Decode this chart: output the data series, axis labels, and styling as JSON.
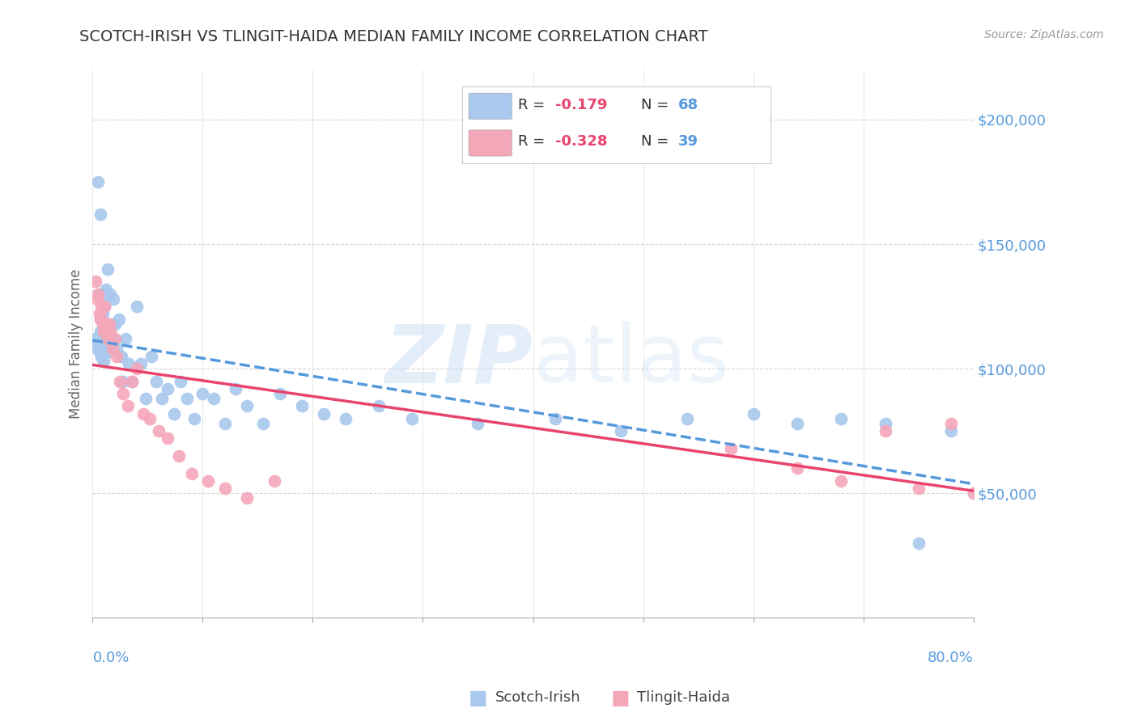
{
  "title": "SCOTCH-IRISH VS TLINGIT-HAIDA MEDIAN FAMILY INCOME CORRELATION CHART",
  "source": "Source: ZipAtlas.com",
  "ylabel": "Median Family Income",
  "yticks": [
    50000,
    100000,
    150000,
    200000
  ],
  "ytick_labels": [
    "$50,000",
    "$100,000",
    "$150,000",
    "$200,000"
  ],
  "ylim": [
    0,
    220000
  ],
  "xlim": [
    0.0,
    0.8
  ],
  "legend_r1": "-0.179",
  "legend_n1": "68",
  "legend_r2": "-0.328",
  "legend_n2": "39",
  "scatter_color_1": "#a8c8ed",
  "scatter_color_2": "#f4a7b9",
  "line_color_1": "#5599dd",
  "line_color_2": "#e8446e",
  "background_color": "#ffffff",
  "grid_color": "#cccccc",
  "title_color": "#333333",
  "axis_label_color": "#5599dd",
  "scotch_irish_x": [
    0.003,
    0.004,
    0.005,
    0.005,
    0.006,
    0.006,
    0.007,
    0.007,
    0.008,
    0.008,
    0.009,
    0.009,
    0.01,
    0.01,
    0.01,
    0.011,
    0.011,
    0.012,
    0.012,
    0.013,
    0.013,
    0.014,
    0.015,
    0.016,
    0.017,
    0.018,
    0.019,
    0.02,
    0.022,
    0.024,
    0.026,
    0.028,
    0.03,
    0.033,
    0.036,
    0.04,
    0.044,
    0.048,
    0.053,
    0.058,
    0.063,
    0.068,
    0.074,
    0.08,
    0.086,
    0.092,
    0.1,
    0.11,
    0.12,
    0.13,
    0.14,
    0.155,
    0.17,
    0.19,
    0.21,
    0.23,
    0.26,
    0.29,
    0.35,
    0.42,
    0.48,
    0.54,
    0.6,
    0.64,
    0.68,
    0.72,
    0.75,
    0.78
  ],
  "scotch_irish_y": [
    112000,
    108000,
    175000,
    110000,
    130000,
    107000,
    115000,
    162000,
    105000,
    120000,
    110000,
    122000,
    103000,
    115000,
    130000,
    110000,
    125000,
    112000,
    132000,
    107000,
    118000,
    140000,
    107000,
    130000,
    118000,
    112000,
    128000,
    118000,
    108000,
    120000,
    105000,
    95000,
    112000,
    102000,
    95000,
    125000,
    102000,
    88000,
    105000,
    95000,
    88000,
    92000,
    82000,
    95000,
    88000,
    80000,
    90000,
    88000,
    78000,
    92000,
    85000,
    78000,
    90000,
    85000,
    82000,
    80000,
    85000,
    80000,
    78000,
    80000,
    75000,
    80000,
    82000,
    78000,
    80000,
    78000,
    30000,
    75000
  ],
  "tlingit_haida_x": [
    0.003,
    0.004,
    0.005,
    0.006,
    0.007,
    0.008,
    0.009,
    0.01,
    0.011,
    0.012,
    0.013,
    0.014,
    0.015,
    0.016,
    0.018,
    0.02,
    0.022,
    0.025,
    0.028,
    0.032,
    0.036,
    0.04,
    0.046,
    0.052,
    0.06,
    0.068,
    0.078,
    0.09,
    0.105,
    0.12,
    0.14,
    0.165,
    0.58,
    0.64,
    0.68,
    0.72,
    0.75,
    0.78,
    0.8
  ],
  "tlingit_haida_y": [
    135000,
    128000,
    130000,
    122000,
    120000,
    125000,
    118000,
    115000,
    125000,
    118000,
    115000,
    112000,
    118000,
    115000,
    108000,
    112000,
    105000,
    95000,
    90000,
    85000,
    95000,
    100000,
    82000,
    80000,
    75000,
    72000,
    65000,
    58000,
    55000,
    52000,
    48000,
    55000,
    68000,
    60000,
    55000,
    75000,
    52000,
    78000,
    50000
  ]
}
